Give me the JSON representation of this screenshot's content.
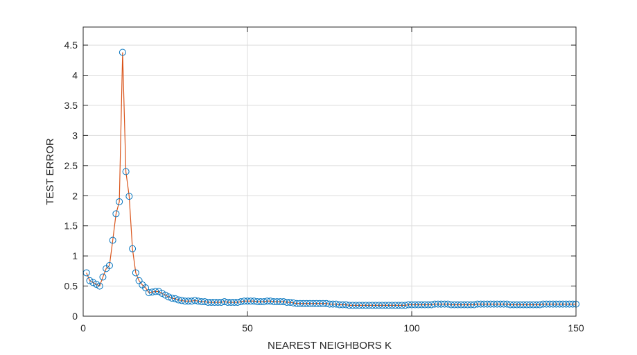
{
  "chart_data": {
    "type": "line",
    "title": "",
    "xlabel": "NEAREST NEIGHBORS K",
    "ylabel": "TEST ERROR",
    "xlim": [
      0,
      150
    ],
    "ylim": [
      0,
      4.8
    ],
    "xticks": [
      0,
      50,
      100,
      150
    ],
    "xtick_labels": [
      "0",
      "50",
      "100",
      "150"
    ],
    "yticks": [
      0,
      0.5,
      1,
      1.5,
      2,
      2.5,
      3,
      3.5,
      4,
      4.5
    ],
    "ytick_labels": [
      "0",
      "0.5",
      "1",
      "1.5",
      "2",
      "2.5",
      "3",
      "3.5",
      "4",
      "4.5"
    ],
    "grid": true,
    "colors": {
      "line": "#d95319",
      "marker": "#0072bd",
      "grid": "#dcdcdc",
      "axes": "#262626"
    },
    "series": [
      {
        "marker": "circle",
        "x": [
          1,
          2,
          3,
          4,
          5,
          6,
          7,
          8,
          9,
          10,
          11,
          12,
          13,
          14,
          15,
          16,
          17,
          18,
          19,
          20,
          21,
          22,
          23,
          24,
          25,
          26,
          27,
          28,
          29,
          30,
          31,
          32,
          33,
          34,
          35,
          36,
          37,
          38,
          39,
          40,
          41,
          42,
          43,
          44,
          45,
          46,
          47,
          48,
          49,
          50,
          51,
          52,
          53,
          54,
          55,
          56,
          57,
          58,
          59,
          60,
          61,
          62,
          63,
          64,
          65,
          66,
          67,
          68,
          69,
          70,
          71,
          72,
          73,
          74,
          75,
          76,
          77,
          78,
          79,
          80,
          81,
          82,
          83,
          84,
          85,
          86,
          87,
          88,
          89,
          90,
          91,
          92,
          93,
          94,
          95,
          96,
          97,
          98,
          99,
          100,
          101,
          102,
          103,
          104,
          105,
          106,
          107,
          108,
          109,
          110,
          111,
          112,
          113,
          114,
          115,
          116,
          117,
          118,
          119,
          120,
          121,
          122,
          123,
          124,
          125,
          126,
          127,
          128,
          129,
          130,
          131,
          132,
          133,
          134,
          135,
          136,
          137,
          138,
          139,
          140,
          141,
          142,
          143,
          144,
          145,
          146,
          147,
          148,
          149,
          150
        ],
        "y": [
          0.72,
          0.59,
          0.56,
          0.53,
          0.5,
          0.65,
          0.79,
          0.84,
          1.26,
          1.7,
          1.9,
          4.38,
          2.4,
          1.99,
          1.12,
          0.72,
          0.59,
          0.52,
          0.47,
          0.39,
          0.4,
          0.41,
          0.41,
          0.38,
          0.35,
          0.32,
          0.3,
          0.29,
          0.27,
          0.26,
          0.25,
          0.25,
          0.25,
          0.26,
          0.25,
          0.24,
          0.24,
          0.23,
          0.23,
          0.23,
          0.23,
          0.23,
          0.24,
          0.23,
          0.23,
          0.23,
          0.23,
          0.24,
          0.25,
          0.25,
          0.25,
          0.25,
          0.24,
          0.24,
          0.24,
          0.25,
          0.25,
          0.24,
          0.24,
          0.24,
          0.24,
          0.23,
          0.23,
          0.22,
          0.21,
          0.21,
          0.21,
          0.21,
          0.21,
          0.21,
          0.21,
          0.21,
          0.21,
          0.21,
          0.2,
          0.2,
          0.2,
          0.19,
          0.19,
          0.19,
          0.18,
          0.18,
          0.18,
          0.18,
          0.18,
          0.18,
          0.18,
          0.18,
          0.18,
          0.18,
          0.18,
          0.18,
          0.18,
          0.18,
          0.18,
          0.18,
          0.18,
          0.18,
          0.19,
          0.19,
          0.19,
          0.19,
          0.19,
          0.19,
          0.19,
          0.19,
          0.2,
          0.2,
          0.2,
          0.2,
          0.2,
          0.19,
          0.19,
          0.19,
          0.19,
          0.19,
          0.19,
          0.19,
          0.19,
          0.2,
          0.2,
          0.2,
          0.2,
          0.2,
          0.2,
          0.2,
          0.2,
          0.2,
          0.2,
          0.19,
          0.19,
          0.19,
          0.19,
          0.19,
          0.19,
          0.19,
          0.19,
          0.19,
          0.19,
          0.2,
          0.2,
          0.2,
          0.2,
          0.2,
          0.2,
          0.2,
          0.2,
          0.2,
          0.2,
          0.2
        ]
      }
    ]
  }
}
